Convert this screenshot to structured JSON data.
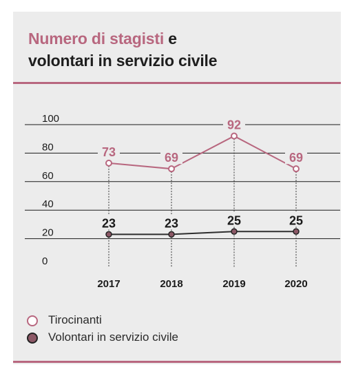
{
  "title": {
    "accent": "Numero di stagisti",
    "rest_line1": " e",
    "line2": "volontari in servizio civile"
  },
  "colors": {
    "accent": "#b8677f",
    "dark_series_fill": "#8c5866",
    "dark_line": "#2e2e2e",
    "panel_bg": "#ececec",
    "grid": "#1a1a1a"
  },
  "legend": [
    {
      "label": "Tirocinanti",
      "marker": "hollow-circle",
      "color": "#b8677f"
    },
    {
      "label": "Volontari in servizio civile",
      "marker": "filled-circle",
      "color": "#8c5866"
    }
  ],
  "chart_data": {
    "type": "line",
    "x": [
      "2017",
      "2018",
      "2019",
      "2020"
    ],
    "series": [
      {
        "name": "Tirocinanti",
        "values": [
          73,
          69,
          92,
          69
        ]
      },
      {
        "name": "Volontari in servizio civile",
        "values": [
          23,
          23,
          25,
          25
        ]
      }
    ],
    "y_ticks": [
      "100",
      "80",
      "60",
      "40",
      "20",
      "0"
    ],
    "ylim": [
      0,
      100
    ],
    "grid": true,
    "legend_position": "bottom-left",
    "title": "Numero di stagisti e volontari in servizio civile",
    "xlabel": "",
    "ylabel": ""
  }
}
